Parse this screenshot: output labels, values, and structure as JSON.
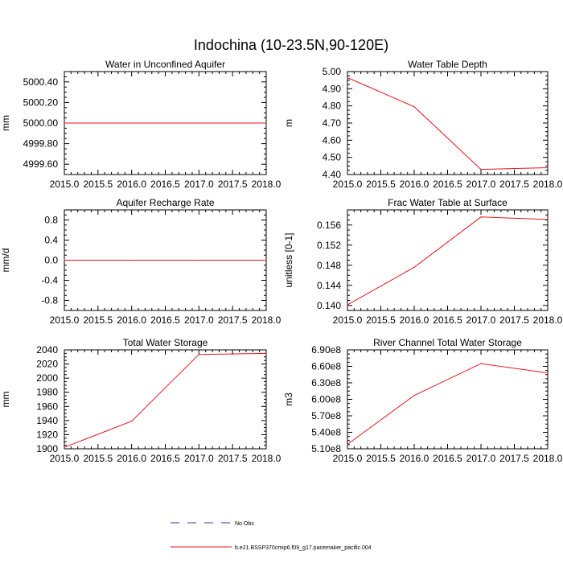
{
  "figure": {
    "title": "Indochina (10-23.5N,90-120E)"
  },
  "legend": {
    "entries": [
      {
        "label": "No Obs",
        "style": "dashed",
        "color": "#3a3aa0"
      },
      {
        "label": "b.e21.BSSP370cmip6.f09_g17.pacemaker_pacific.004",
        "style": "solid",
        "color": "#e8141e"
      }
    ]
  },
  "chart_data": [
    {
      "type": "line",
      "title": "Water in Unconfined Aquifer",
      "ylabel": "mm",
      "x": [
        2015,
        2016,
        2017,
        2018
      ],
      "xlim": [
        2015,
        2018
      ],
      "xticks": [
        "2015.0",
        "2015.5",
        "2016.0",
        "2016.5",
        "2017.0",
        "2017.5",
        "2018.0"
      ],
      "ylim": [
        4999.5,
        5000.5
      ],
      "yticks": [
        4999.6,
        4999.8,
        5000.0,
        5000.2,
        5000.4
      ],
      "ytick_labels": [
        "4999.60",
        "4999.80",
        "5000.00",
        "5000.20",
        "5000.40"
      ],
      "series": [
        {
          "color": "#e8141e",
          "values": [
            5000,
            5000,
            5000,
            5000
          ]
        }
      ]
    },
    {
      "type": "line",
      "title": "Water Table Depth",
      "ylabel": "m",
      "x": [
        2015,
        2016,
        2017,
        2018
      ],
      "xlim": [
        2015,
        2018
      ],
      "xticks": [
        "2015.0",
        "2015.5",
        "2016.0",
        "2016.5",
        "2017.0",
        "2017.5",
        "2018.0"
      ],
      "ylim": [
        4.4,
        5.0
      ],
      "yticks": [
        4.4,
        4.5,
        4.6,
        4.7,
        4.8,
        4.9,
        5.0
      ],
      "ytick_labels": [
        "4.40",
        "4.50",
        "4.60",
        "4.70",
        "4.80",
        "4.90",
        "5.00"
      ],
      "series": [
        {
          "color": "#e8141e",
          "values": [
            4.965,
            4.795,
            4.43,
            4.44
          ]
        }
      ]
    },
    {
      "type": "line",
      "title": "Aquifer Recharge Rate",
      "ylabel": "mm/d",
      "x": [
        2015,
        2016,
        2017,
        2018
      ],
      "xlim": [
        2015,
        2018
      ],
      "xticks": [
        "2015.0",
        "2015.5",
        "2016.0",
        "2016.5",
        "2017.0",
        "2017.5",
        "2018.0"
      ],
      "ylim": [
        -1.0,
        1.0
      ],
      "yticks": [
        -0.8,
        -0.4,
        0.0,
        0.4,
        0.8
      ],
      "ytick_labels": [
        "-0.8",
        "-0.4",
        "0.0",
        "0.4",
        "0.8"
      ],
      "series": [
        {
          "color": "#e8141e",
          "values": [
            0,
            0,
            0,
            0
          ]
        }
      ]
    },
    {
      "type": "line",
      "title": "Frac Water Table at Surface",
      "ylabel": "unitless [0-1]",
      "x": [
        2015,
        2016,
        2017,
        2018
      ],
      "xlim": [
        2015,
        2018
      ],
      "xticks": [
        "2015.0",
        "2015.5",
        "2016.0",
        "2016.5",
        "2017.0",
        "2017.5",
        "2018.0"
      ],
      "ylim": [
        0.139,
        0.159
      ],
      "yticks": [
        0.14,
        0.144,
        0.148,
        0.152,
        0.156
      ],
      "ytick_labels": [
        "0.140",
        "0.144",
        "0.148",
        "0.152",
        "0.156"
      ],
      "series": [
        {
          "color": "#e8141e",
          "values": [
            0.1401,
            0.1476,
            0.1576,
            0.1571
          ]
        }
      ]
    },
    {
      "type": "line",
      "title": "Total Water Storage",
      "ylabel": "mm",
      "x": [
        2015,
        2016,
        2017,
        2018
      ],
      "xlim": [
        2015,
        2018
      ],
      "xticks": [
        "2015.0",
        "2015.5",
        "2016.0",
        "2016.5",
        "2017.0",
        "2017.5",
        "2018.0"
      ],
      "ylim": [
        1900,
        2040
      ],
      "yticks": [
        1900,
        1920,
        1940,
        1960,
        1980,
        2000,
        2020,
        2040
      ],
      "ytick_labels": [
        "1900",
        "1920",
        "1940",
        "1960",
        "1980",
        "2000",
        "2020",
        "2040"
      ],
      "series": [
        {
          "color": "#e8141e",
          "values": [
            1902,
            1939,
            2033.5,
            2035
          ]
        }
      ]
    },
    {
      "type": "line",
      "title": "River Channel Total Water Storage",
      "ylabel": "m3",
      "x": [
        2015,
        2016,
        2017,
        2018
      ],
      "xlim": [
        2015,
        2018
      ],
      "xticks": [
        "2015.0",
        "2015.5",
        "2016.0",
        "2016.5",
        "2017.0",
        "2017.5",
        "2018.0"
      ],
      "ylim": [
        510000000,
        690000000
      ],
      "yticks": [
        510000000,
        540000000,
        570000000,
        600000000,
        630000000,
        660000000,
        690000000
      ],
      "ytick_labels": [
        "5.10e8",
        "5.40e8",
        "5.70e8",
        "6.00e8",
        "6.30e8",
        "6.60e8",
        "6.90e8"
      ],
      "series": [
        {
          "color": "#e8141e",
          "values": [
            518000000,
            607000000,
            665000000,
            648000000
          ]
        }
      ]
    }
  ]
}
